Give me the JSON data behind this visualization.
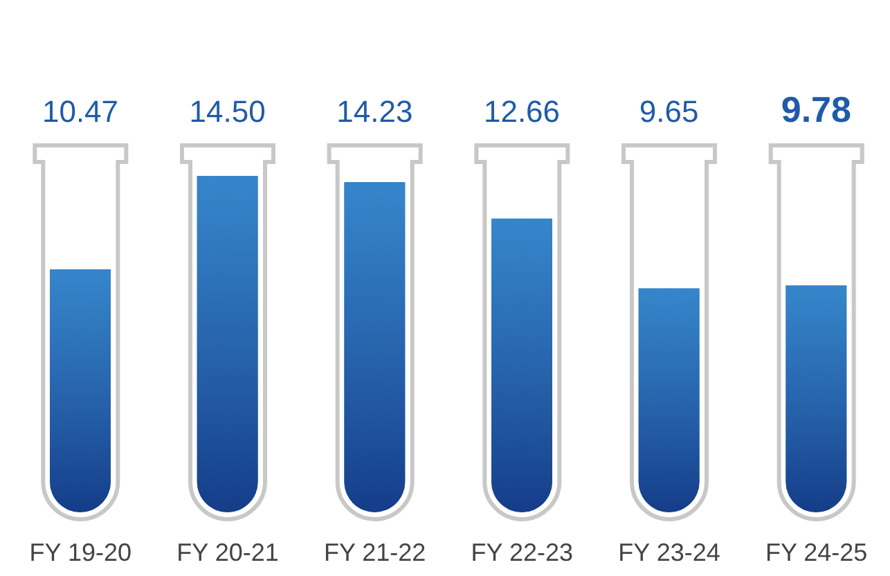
{
  "chart_data": {
    "type": "bar",
    "categories": [
      "FY 19-20",
      "FY 20-21",
      "FY 21-22",
      "FY 22-23",
      "FY 23-24",
      "FY 24-25"
    ],
    "values": [
      10.47,
      14.5,
      14.23,
      12.66,
      9.65,
      9.78
    ],
    "color": "#2263ad",
    "value_labels": [
      "10.47",
      "14.50",
      "14.23",
      "12.66",
      "9.65",
      "9.78"
    ]
  }
}
